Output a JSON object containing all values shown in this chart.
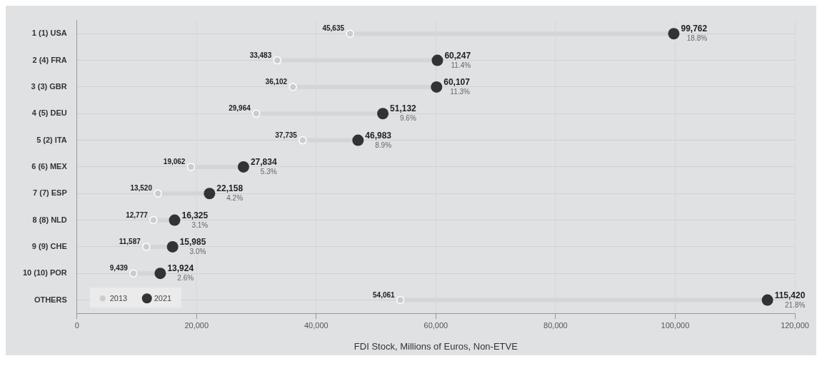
{
  "chart_data": {
    "type": "scatter",
    "orientation": "horizontal",
    "categories": [
      "1 (1) USA",
      "2 (4) FRA",
      "3 (3) GBR",
      "4 (5) DEU",
      "5 (2) ITA",
      "6 (6) MEX",
      "7 (7) ESP",
      "8 (8) NLD",
      "9 (9) CHE",
      "10 (10) POR",
      "OTHERS"
    ],
    "series": [
      {
        "name": "2013",
        "color": "#cccccc",
        "values": [
          45635,
          33483,
          36102,
          29964,
          37735,
          19062,
          13520,
          12777,
          11587,
          9439,
          54061
        ],
        "value_labels": [
          "45,635",
          "33,483",
          "36,102",
          "29,964",
          "37,735",
          "19,062",
          "13,520",
          "12,777",
          "11,587",
          "9,439",
          "54,061"
        ]
      },
      {
        "name": "2021",
        "color": "#333333",
        "values": [
          99762,
          60247,
          60107,
          51132,
          46983,
          27834,
          22158,
          16325,
          15985,
          13924,
          115420
        ],
        "value_labels": [
          "99,762",
          "60,247",
          "60,107",
          "51,132",
          "46,983",
          "27,834",
          "22,158",
          "16,325",
          "15,985",
          "13,924",
          "115,420"
        ]
      }
    ],
    "xlabel": "FDI Stock, Millions of Euros, Non-ETVE",
    "xlim": [
      0,
      120000
    ],
    "xticks": [
      0,
      {
        "value": 20000,
        "label": "20,000"
      },
      {
        "value": 40000,
        "label": "40,000"
      },
      {
        "value": 60000,
        "label": "60,000"
      },
      {
        "value": 80000,
        "label": "80,000"
      },
      {
        "value": 100000,
        "label": "100,000"
      },
      {
        "value": 120000,
        "label": "120,000"
      }
    ],
    "annotations": [
      {
        "text": "18.8%",
        "x": 99762,
        "y": "1 (1) USA"
      },
      {
        "text": "11.4%",
        "x": 60247,
        "y": "2 (4) FRA"
      },
      {
        "text": "11.3%",
        "x": 60107,
        "y": "3 (3) GBR"
      },
      {
        "text": "9.6%",
        "x": 51132,
        "y": "4 (5) DEU"
      },
      {
        "text": "8.9%",
        "x": 46983,
        "y": "5 (2) ITA"
      },
      {
        "text": "5.3%",
        "x": 27834,
        "y": "6 (6) MEX"
      },
      {
        "text": "4.2%",
        "x": 22158,
        "y": "7 (7) ESP"
      },
      {
        "text": "3.1%",
        "x": 16325,
        "y": "8 (8) NLD"
      },
      {
        "text": "3.0%",
        "x": 15985,
        "y": "9 (9) CHE"
      },
      {
        "text": "2.6%",
        "x": 13924,
        "y": "10 (10) POR"
      },
      {
        "text": "21.8%",
        "x": 115420,
        "y": "OTHERS"
      }
    ],
    "grid": true,
    "legend": "bottom left",
    "marker": "circle"
  }
}
